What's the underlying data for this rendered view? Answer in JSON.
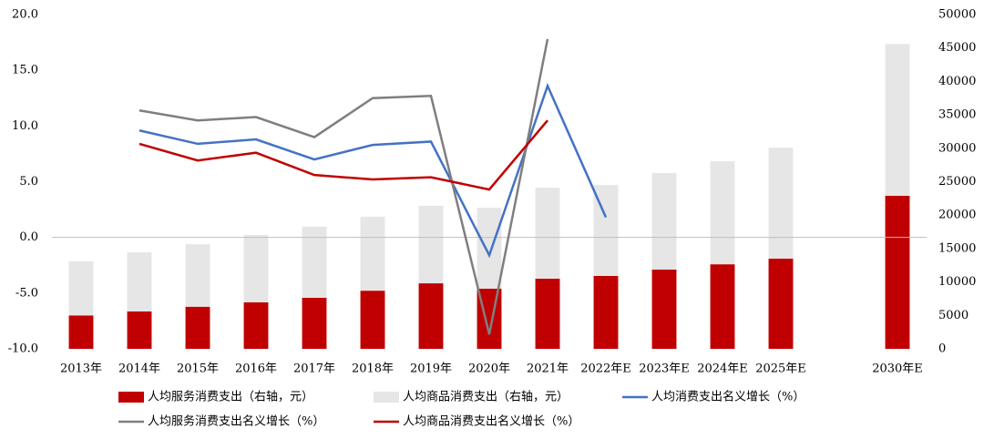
{
  "chart_data": {
    "type": "bar",
    "categories": [
      "2013年",
      "2014年",
      "2015年",
      "2016年",
      "2017年",
      "2018年",
      "2019年",
      "2020年",
      "2021年",
      "2022年E",
      "2023年E",
      "2024年E",
      "2025年E",
      null,
      "2030年E"
    ],
    "series": [
      {
        "name": "人均服务消费支出（右轴，元）",
        "type": "bar",
        "axis": "y2",
        "color": "#c00000",
        "values": [
          5000,
          5600,
          6300,
          6950,
          7630,
          8700,
          9800,
          9000,
          10500,
          10900,
          11850,
          12650,
          13500,
          null,
          22900
        ]
      },
      {
        "name": "人均商品消费支出（右轴，元）",
        "type": "bar",
        "axis": "y2",
        "color": "#e7e6e6",
        "values": [
          8100,
          8850,
          9350,
          10100,
          10650,
          11050,
          11600,
          12100,
          13600,
          13600,
          14450,
          15400,
          16600,
          null,
          22700
        ]
      },
      {
        "name": "人均消费支出名义增长（%）",
        "type": "line",
        "color": "#4472c4",
        "values": [
          null,
          9.6,
          8.4,
          8.8,
          7.0,
          8.3,
          8.6,
          -1.6,
          13.6,
          1.8,
          null,
          null,
          null,
          null,
          null
        ]
      },
      {
        "name": "人均服务消费支出名义增长（%）",
        "type": "line",
        "color": "#7f7f7f",
        "values": [
          null,
          11.4,
          10.5,
          10.8,
          9.0,
          12.5,
          12.7,
          -8.7,
          17.8,
          null,
          null,
          null,
          null,
          null,
          null
        ]
      },
      {
        "name": "人均商品消费支出名义增长（%）",
        "type": "line",
        "color": "#c00000",
        "values": [
          null,
          8.4,
          6.9,
          7.6,
          5.6,
          5.2,
          5.4,
          4.3,
          10.5,
          null,
          null,
          null,
          null,
          null,
          null
        ]
      }
    ],
    "ylim": [
      -10,
      20
    ],
    "yticks": [
      {
        "value": -10,
        "label": "-10.0"
      },
      {
        "value": -5,
        "label": "-5.0"
      },
      {
        "value": 0,
        "label": "0.0"
      },
      {
        "value": 5,
        "label": "5.0"
      },
      {
        "value": 10,
        "label": "10.0"
      },
      {
        "value": 15,
        "label": "15.0"
      },
      {
        "value": 20,
        "label": "20.0"
      }
    ],
    "y2lim": [
      0,
      50000
    ],
    "y2ticks": [
      0,
      5000,
      10000,
      15000,
      20000,
      25000,
      30000,
      35000,
      40000,
      45000,
      50000
    ],
    "grid": false
  }
}
